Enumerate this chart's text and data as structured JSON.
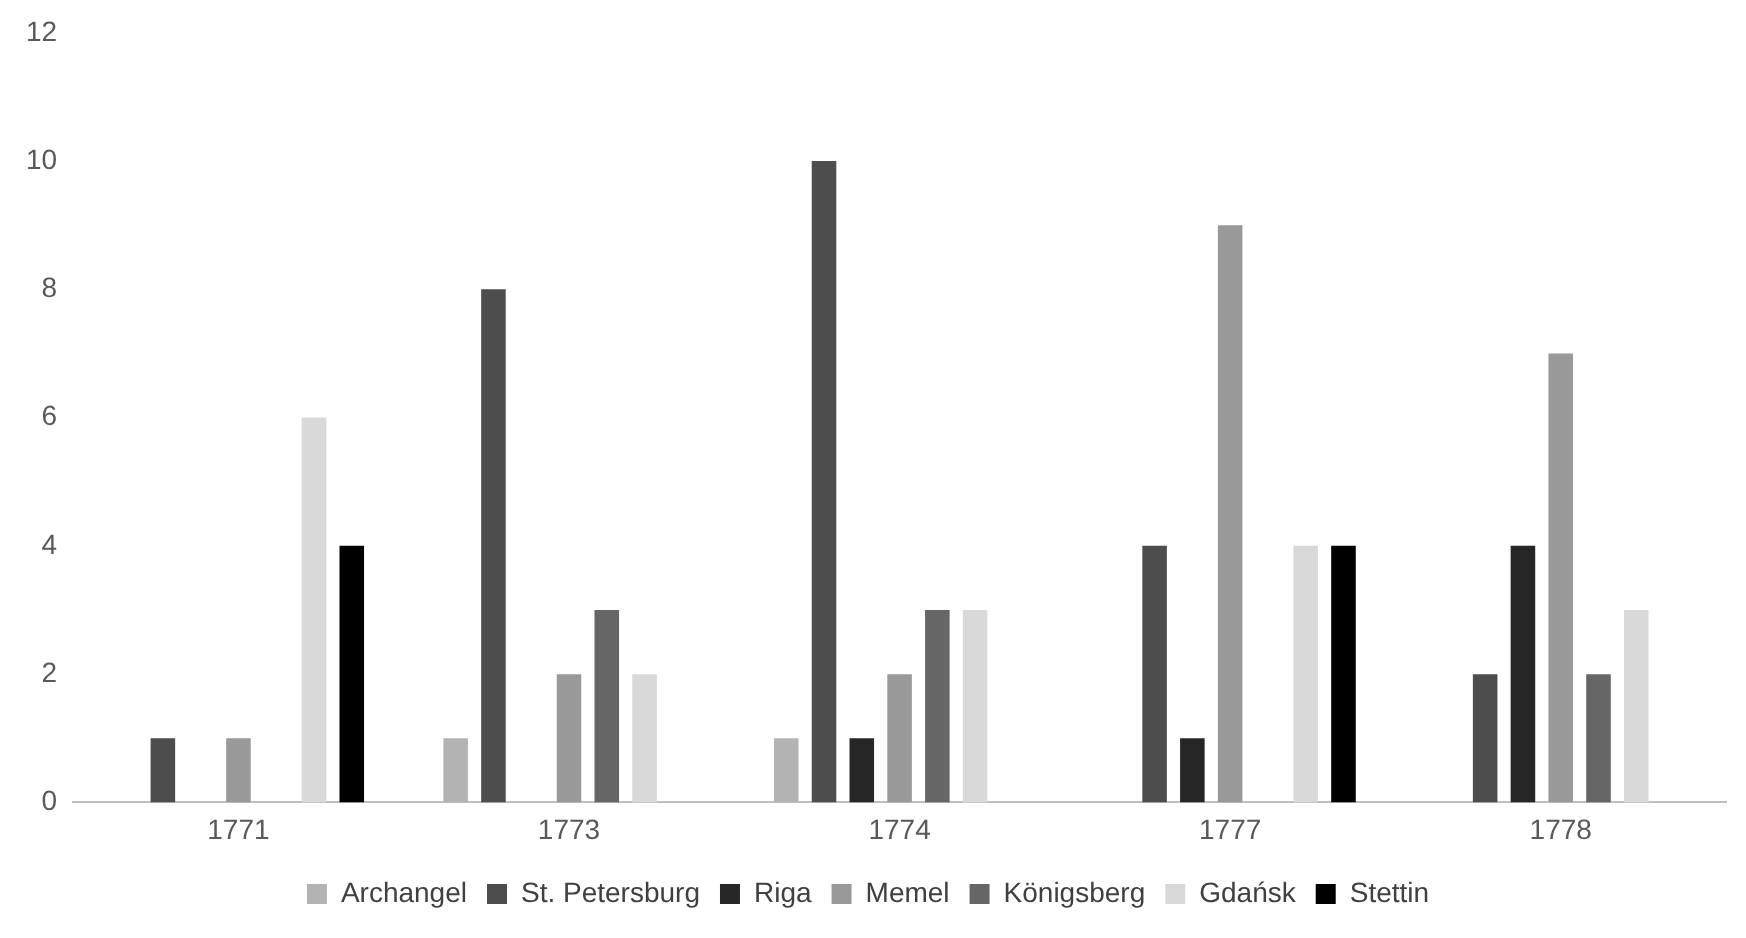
{
  "chart_data": {
    "type": "bar",
    "categories": [
      "1771",
      "1773",
      "1774",
      "1777",
      "1778"
    ],
    "series": [
      {
        "name": "Archangel",
        "color": "#b3b3b3",
        "values": [
          0,
          1,
          1,
          0,
          0
        ]
      },
      {
        "name": "St. Petersburg",
        "color": "#4d4d4d",
        "values": [
          1,
          8,
          10,
          4,
          2
        ]
      },
      {
        "name": "Riga",
        "color": "#262626",
        "values": [
          0,
          0,
          1,
          1,
          4
        ]
      },
      {
        "name": "Memel",
        "color": "#999999",
        "values": [
          1,
          2,
          2,
          9,
          7
        ]
      },
      {
        "name": "Königsberg",
        "color": "#666666",
        "values": [
          0,
          3,
          3,
          0,
          2
        ]
      },
      {
        "name": "Gdańsk",
        "color": "#d9d9d9",
        "values": [
          6,
          2,
          3,
          4,
          3
        ]
      },
      {
        "name": "Stettin",
        "color": "#000000",
        "values": [
          4,
          0,
          0,
          4,
          0
        ]
      }
    ],
    "ylim": [
      0,
      12
    ],
    "yticks": [
      0,
      2,
      4,
      6,
      8,
      10,
      12
    ],
    "grid": false,
    "legend": "bottom"
  }
}
